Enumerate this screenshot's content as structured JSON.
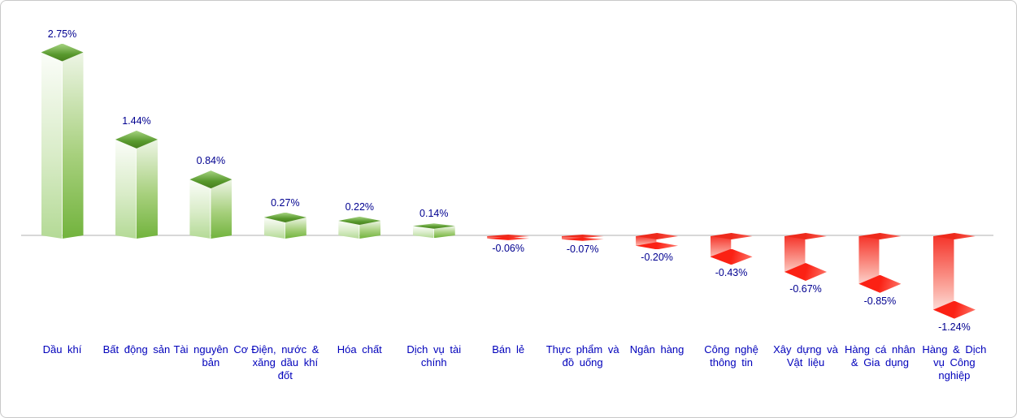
{
  "panel": {
    "background": "#ffffff",
    "border_color": "#c9c9c9"
  },
  "chart_data": {
    "type": "bar",
    "title": "",
    "subtitle": "",
    "xlabel": "",
    "ylabel": "",
    "value_format": "percent",
    "categories": [
      "Dầu khí",
      "Bất động sản",
      "Tài nguyên Cơ bản",
      "Điện, nước & xăng dầu khí đốt",
      "Hóa chất",
      "Dịch vụ tài chính",
      "Bán lẻ",
      "Thực phẩm và đồ uống",
      "Ngân hàng",
      "Công nghệ thông tin",
      "Xây dựng và Vật liệu",
      "Hàng cá nhân & Gia dụng",
      "Hàng & Dịch vụ Công nghiệp"
    ],
    "category_display": [
      "Dầu khí",
      "Bất động sản",
      "Tài nguyên Cơ\nbản",
      "Điện, nước &\nxăng dầu khí\nđốt",
      "Hóa chất",
      "Dịch vụ tài\nchính",
      "Bán lẻ",
      "Thực phẩm và\nđồ uống",
      "Ngân hàng",
      "Công nghệ\nthông tin",
      "Xây dựng và\nVật liệu",
      "Hàng cá nhân\n& Gia dụng",
      "Hàng & Dịch\nvụ Công\nnghiệp"
    ],
    "values": [
      2.75,
      1.44,
      0.84,
      0.27,
      0.22,
      0.14,
      -0.06,
      -0.07,
      -0.2,
      -0.43,
      -0.67,
      -0.85,
      -1.24
    ],
    "value_labels": [
      "2.75%",
      "1.44%",
      "0.84%",
      "0.27%",
      "0.22%",
      "0.14%",
      "-0.06%",
      "-0.07%",
      "-0.20%",
      "-0.43%",
      "-0.67%",
      "-0.85%",
      "-1.24%"
    ],
    "ylim": [
      -1.4,
      2.9
    ],
    "grid": false,
    "legend": "none",
    "bar_style": "3d-prism",
    "colors": {
      "positive_bar": "#6fb23c",
      "negative_bar": "#fb2c20",
      "value_label": "#000090",
      "category_label": "#0000bb",
      "baseline": "#d8d8d8"
    }
  }
}
